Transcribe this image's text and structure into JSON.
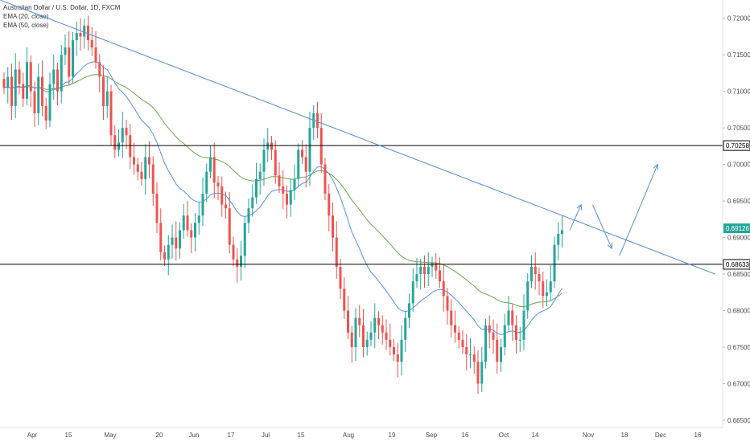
{
  "legend": {
    "title": "Australian Dollar / U.S. Dollar, 1D, FXCM",
    "ema20": "EMA (20, close)",
    "ema50": "EMA (50, close)"
  },
  "colors": {
    "bull": "#26a69a",
    "bear": "#ef5350",
    "ema20": "#5b8def",
    "ema50": "#6aa84f",
    "trendline": "#5b8fd6",
    "hline": "#000000",
    "current_price": "#26a69a"
  },
  "chart_data": {
    "type": "candlestick",
    "symbol": "Australian Dollar / U.S. Dollar",
    "interval": "1D",
    "y_ticks": [
      "0.72000",
      "0.71500",
      "0.71000",
      "0.70500",
      "0.70000",
      "0.69500",
      "0.69000",
      "0.68500",
      "0.68000",
      "0.67500",
      "0.67000",
      "0.66500"
    ],
    "x_ticks": [
      "Apr",
      "15",
      "May",
      "20",
      "Jun",
      "17",
      "Jul",
      "15",
      "Aug",
      "19",
      "Sep",
      "16",
      "Oct",
      "14",
      "Nov",
      "18",
      "Dec",
      "16"
    ],
    "ylim": [
      0.664,
      0.7225
    ],
    "price_levels": [
      {
        "label": "0.70258",
        "value": 0.70258
      },
      {
        "label": "0.68633",
        "value": 0.68633
      }
    ],
    "current_price": {
      "label": "0.69126",
      "value": 0.69126
    },
    "candles_close": [
      0.7105,
      0.712,
      0.708,
      0.713,
      0.711,
      0.709,
      0.714,
      0.71,
      0.707,
      0.712,
      0.708,
      0.706,
      0.711,
      0.713,
      0.71,
      0.715,
      0.716,
      0.712,
      0.717,
      0.718,
      0.7175,
      0.719,
      0.717,
      0.716,
      0.714,
      0.712,
      0.708,
      0.71,
      0.704,
      0.702,
      0.703,
      0.705,
      0.704,
      0.701,
      0.7,
      0.699,
      0.698,
      0.701,
      0.7,
      0.696,
      0.692,
      0.688,
      0.687,
      0.689,
      0.69,
      0.6885,
      0.691,
      0.693,
      0.691,
      0.69,
      0.692,
      0.693,
      0.696,
      0.699,
      0.701,
      0.6975,
      0.697,
      0.6945,
      0.694,
      0.689,
      0.687,
      0.686,
      0.6875,
      0.692,
      0.694,
      0.6955,
      0.698,
      0.699,
      0.702,
      0.703,
      0.702,
      0.6985,
      0.697,
      0.696,
      0.6945,
      0.6965,
      0.698,
      0.702,
      0.701,
      0.699,
      0.705,
      0.707,
      0.705,
      0.7,
      0.696,
      0.693,
      0.69,
      0.686,
      0.683,
      0.68,
      0.677,
      0.675,
      0.679,
      0.678,
      0.675,
      0.676,
      0.677,
      0.679,
      0.678,
      0.677,
      0.676,
      0.675,
      0.674,
      0.673,
      0.676,
      0.679,
      0.681,
      0.684,
      0.685,
      0.686,
      0.685,
      0.686,
      0.6865,
      0.6855,
      0.684,
      0.682,
      0.68,
      0.678,
      0.677,
      0.676,
      0.675,
      0.674,
      0.674,
      0.673,
      0.67,
      0.673,
      0.678,
      0.677,
      0.676,
      0.673,
      0.675,
      0.678,
      0.68,
      0.678,
      0.676,
      0.676,
      0.68,
      0.684,
      0.686,
      0.685,
      0.684,
      0.682,
      0.6825,
      0.684,
      0.689,
      0.6905,
      0.691
    ]
  },
  "annotations": [
    {
      "type": "trendline",
      "from": {
        "x_index": -1,
        "y": 0.7225
      },
      "to": {
        "x_index": 186,
        "y": 0.685
      }
    },
    {
      "type": "arrow-path",
      "points": [
        {
          "x_index": 148,
          "y": 0.691
        },
        {
          "x_index": 151,
          "y": 0.6945
        }
      ]
    },
    {
      "type": "arrow-path",
      "points": [
        {
          "x_index": 154,
          "y": 0.6945
        },
        {
          "x_index": 159,
          "y": 0.6885
        }
      ]
    },
    {
      "type": "arrow-path",
      "points": [
        {
          "x_index": 161,
          "y": 0.6875
        },
        {
          "x_index": 171,
          "y": 0.7
        }
      ]
    }
  ]
}
